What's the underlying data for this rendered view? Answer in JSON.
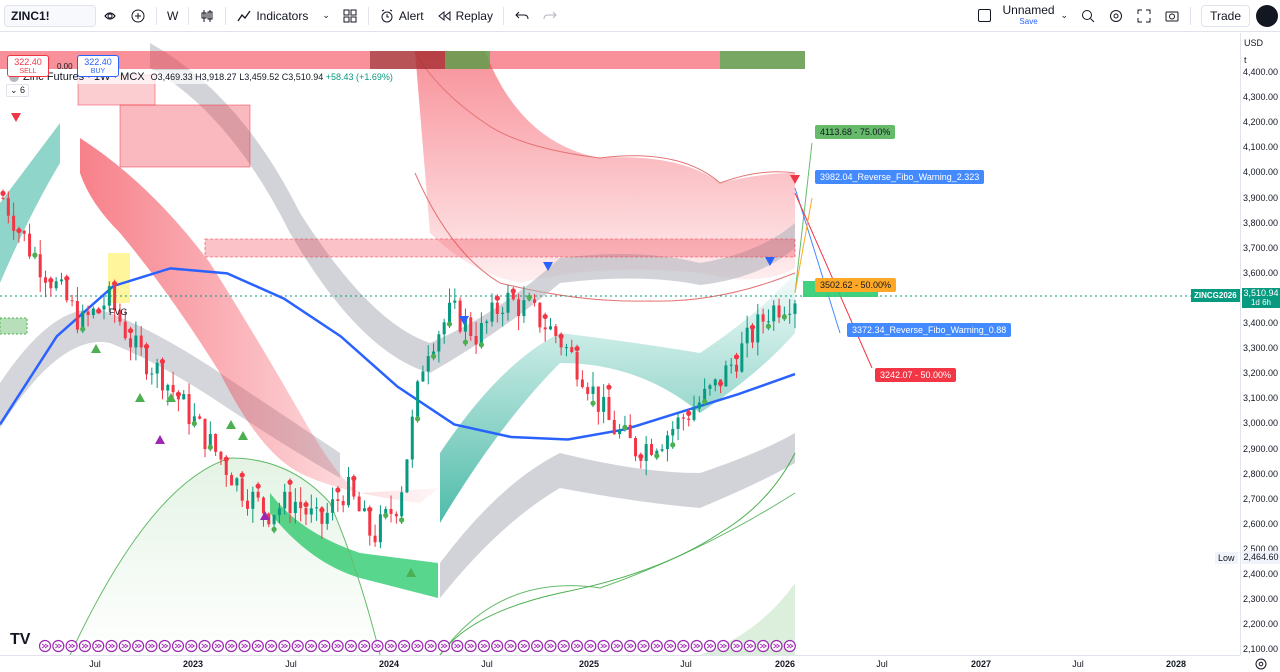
{
  "toolbar": {
    "symbol": "ZINC1!",
    "interval": "W",
    "indicators_label": "Indicators",
    "alert_label": "Alert",
    "replay_label": "Replay",
    "layout_name": "Unnamed",
    "layout_sub": "Save",
    "trade_label": "Trade"
  },
  "legend": {
    "title": "Zinc Futures · 1W · MCX",
    "ohlc": "O3,469.33 H3,918.27 L3,459.52 C3,510.94",
    "change": "+58.43 (+1.69%)",
    "sell_price": "322.40",
    "sell_label": "SELL",
    "buy_price": "322.40",
    "buy_label": "BUY",
    "spread": "0.00",
    "indicator_count": "6"
  },
  "price_axis": {
    "currency": "USD",
    "currency_sub": "t",
    "ticks": [
      "4,400.00",
      "4,300.00",
      "4,200.00",
      "4,100.00",
      "4,000.00",
      "3,900.00",
      "3,800.00",
      "3,700.00",
      "3,600.00",
      "3,500.00",
      "3,400.00",
      "3,300.00",
      "3,200.00",
      "3,100.00",
      "3,000.00",
      "2,900.00",
      "2,800.00",
      "2,700.00",
      "2,600.00",
      "2,500.00",
      "2,400.00",
      "2,300.00",
      "2,200.00",
      "2,100.00"
    ],
    "current_price": "3,510.94",
    "current_sub": "1d 6h",
    "low_value": "2,464.60"
  },
  "time_axis": {
    "ticks": [
      "Jul",
      "2023",
      "Jul",
      "2024",
      "Jul",
      "2025",
      "Jul",
      "2026",
      "Jul",
      "2027",
      "Jul",
      "2028"
    ]
  },
  "labels": {
    "target_75": "4113.68 - 75.00%",
    "rev_fibo_1": "3982.04_Reverse_Fibo_Warning_2.323",
    "level_50_orange": "3502.62 - 50.00%",
    "rev_fibo_2": "3372.34_Reverse_Fibo_Warning_0.88",
    "level_50_red": "3242.07 - 50.00%",
    "symbol_tag": "ZINCG2026",
    "fvg": "FVG",
    "low": "Low",
    "logo": "TV"
  },
  "colors": {
    "bull": "#089981",
    "bear": "#f23645",
    "ma": "#2962ff",
    "band": "#b2b5be"
  },
  "chart_data": {
    "type": "candlestick",
    "title": "Zinc Futures · 1W · MCX",
    "ylim": [
      2100,
      4450
    ],
    "x_ticks": [
      "Jul",
      "2023",
      "Jul",
      "2024",
      "Jul",
      "2025",
      "Jul",
      "2026",
      "Jul",
      "2027",
      "Jul",
      "2028"
    ],
    "series": [
      {
        "name": "Close",
        "values": [
          3900,
          3700,
          3550,
          3400,
          3500,
          3300,
          3200,
          3050,
          2900,
          2750,
          2650,
          2700,
          2600,
          2750,
          2550,
          2700,
          3300,
          3450,
          3350,
          3500,
          3450,
          3350,
          3200,
          3000,
          2900,
          2950,
          3050,
          3150,
          3300,
          3450,
          3510.94
        ]
      },
      {
        "name": "MA",
        "values": [
          3000,
          3350,
          3550,
          3620,
          3600,
          3500,
          3350,
          3150,
          3000,
          2950,
          2940,
          2980,
          3050,
          3120,
          3200
        ]
      }
    ],
    "levels": [
      {
        "label": "4113.68 - 75.00%",
        "value": 4113.68
      },
      {
        "label": "3982.04_Reverse_Fibo_Warning_2.323",
        "value": 3982.04
      },
      {
        "label": "3502.62 - 50.00%",
        "value": 3502.62
      },
      {
        "label": "3372.34_Reverse_Fibo_Warning_0.88",
        "value": 3372.34
      },
      {
        "label": "3242.07 - 50.00%",
        "value": 3242.07
      }
    ],
    "last_price": 3510.94,
    "low": 2464.6
  }
}
